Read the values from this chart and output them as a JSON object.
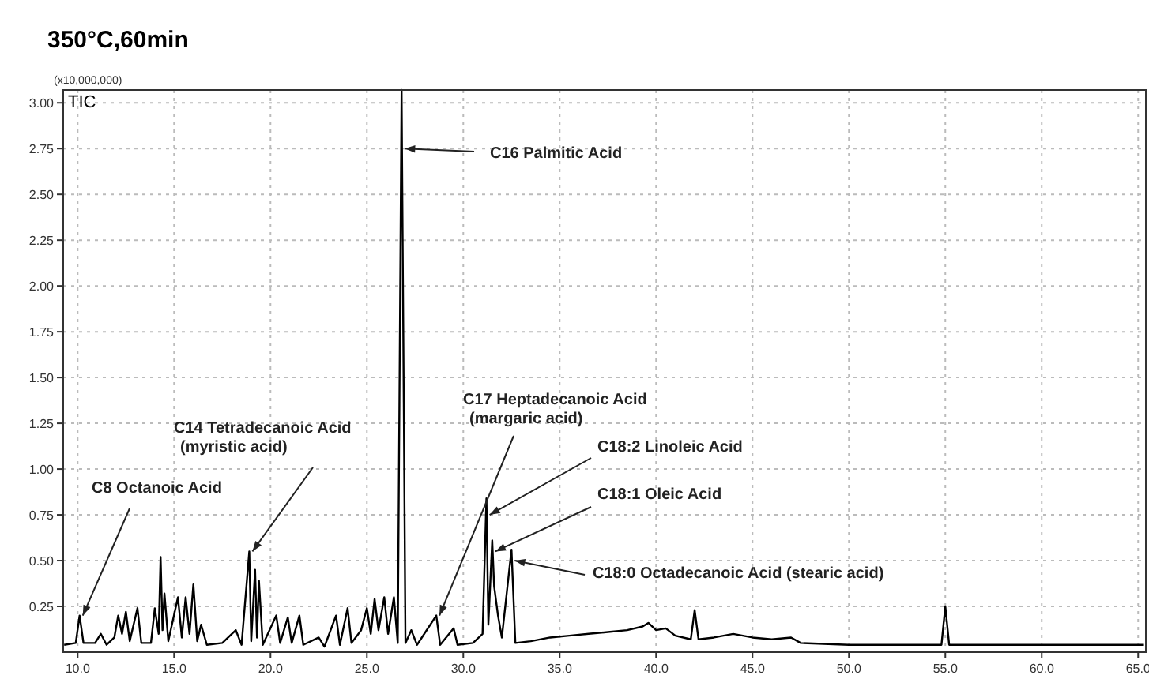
{
  "chart_data": {
    "type": "line",
    "title": "350°C,60min",
    "ylabel": "(x10,000,000)",
    "x": [
      9.3,
      9.9,
      10.1,
      10.3,
      10.9,
      11.2,
      11.5,
      11.9,
      12.1,
      12.3,
      12.5,
      12.7,
      13.1,
      13.3,
      13.8,
      14.0,
      14.2,
      14.3,
      14.4,
      14.5,
      14.7,
      15.2,
      15.4,
      15.6,
      15.8,
      16.0,
      16.2,
      16.4,
      16.7,
      17.5,
      18.2,
      18.5,
      18.9,
      19.0,
      19.2,
      19.3,
      19.4,
      19.6,
      20.3,
      20.5,
      20.9,
      21.1,
      21.5,
      21.7,
      22.5,
      22.8,
      23.4,
      23.6,
      24.0,
      24.2,
      24.7,
      25.0,
      25.2,
      25.4,
      25.6,
      25.9,
      26.1,
      26.4,
      26.6,
      26.8,
      27.0,
      27.3,
      27.6,
      28.6,
      28.8,
      29.5,
      29.7,
      30.5,
      31.0,
      31.2,
      31.3,
      31.5,
      31.6,
      31.8,
      32.0,
      32.5,
      32.7,
      33.5,
      34.5,
      35.5,
      36.5,
      37.5,
      38.5,
      39.3,
      39.6,
      40.0,
      40.5,
      41.0,
      41.8,
      42.0,
      42.2,
      43.0,
      44.0,
      45.0,
      46.0,
      47.0,
      47.5,
      50.0,
      54.8,
      55.0,
      55.2,
      60.0,
      65.3
    ],
    "series": [
      {
        "name": "TIC",
        "color": "#000000",
        "values": [
          0.04,
          0.05,
          0.2,
          0.05,
          0.05,
          0.1,
          0.04,
          0.08,
          0.2,
          0.1,
          0.22,
          0.06,
          0.24,
          0.05,
          0.05,
          0.24,
          0.1,
          0.52,
          0.12,
          0.32,
          0.06,
          0.3,
          0.08,
          0.3,
          0.1,
          0.37,
          0.06,
          0.15,
          0.04,
          0.05,
          0.12,
          0.04,
          0.55,
          0.06,
          0.45,
          0.08,
          0.39,
          0.04,
          0.2,
          0.05,
          0.19,
          0.05,
          0.2,
          0.04,
          0.08,
          0.03,
          0.2,
          0.04,
          0.24,
          0.05,
          0.12,
          0.24,
          0.1,
          0.29,
          0.12,
          0.3,
          0.1,
          0.3,
          0.05,
          3.07,
          0.05,
          0.12,
          0.04,
          0.2,
          0.04,
          0.13,
          0.04,
          0.05,
          0.1,
          0.84,
          0.15,
          0.61,
          0.36,
          0.2,
          0.08,
          0.56,
          0.05,
          0.06,
          0.08,
          0.09,
          0.1,
          0.11,
          0.12,
          0.14,
          0.16,
          0.12,
          0.13,
          0.09,
          0.07,
          0.23,
          0.07,
          0.08,
          0.1,
          0.08,
          0.07,
          0.08,
          0.05,
          0.04,
          0.04,
          0.25,
          0.04,
          0.04,
          0.04
        ]
      }
    ],
    "xlim": [
      9.25,
      65.4
    ],
    "ylim": [
      0,
      3.07
    ],
    "xticks": [
      {
        "value": 10,
        "label": "10.0"
      },
      {
        "value": 15,
        "label": "15.0"
      },
      {
        "value": 20,
        "label": "20.0"
      },
      {
        "value": 25,
        "label": "25.0"
      },
      {
        "value": 30,
        "label": "30.0"
      },
      {
        "value": 35,
        "label": "35.0"
      },
      {
        "value": 40,
        "label": "40.0"
      },
      {
        "value": 45,
        "label": "45.0"
      },
      {
        "value": 50,
        "label": "50.0"
      },
      {
        "value": 55,
        "label": "55.0"
      },
      {
        "value": 60,
        "label": "60.0"
      },
      {
        "value": 65,
        "label": "65.0"
      }
    ],
    "yticks": [
      {
        "value": 0.25,
        "label": "0.25"
      },
      {
        "value": 0.5,
        "label": "0.50"
      },
      {
        "value": 0.75,
        "label": "0.75"
      },
      {
        "value": 1,
        "label": "1.00"
      },
      {
        "value": 1.25,
        "label": "1.25"
      },
      {
        "value": 1.5,
        "label": "1.50"
      },
      {
        "value": 1.75,
        "label": "1.75"
      },
      {
        "value": 2,
        "label": "2.00"
      },
      {
        "value": 2.25,
        "label": "2.25"
      },
      {
        "value": 2.5,
        "label": "2.50"
      },
      {
        "value": 2.75,
        "label": "2.75"
      },
      {
        "value": 3,
        "label": "3.00"
      }
    ],
    "grid": true,
    "legend": false,
    "marker": "none",
    "line_style": "solid",
    "annotations": [
      {
        "text": "C8 Octanoic Acid",
        "x": 10.1,
        "y": 0.2
      },
      {
        "text": "C14 Tetradecanoic Acid\n(myristic acid)",
        "x": 18.9,
        "y": 0.55
      },
      {
        "text": "C16 Palmitic Acid",
        "x": 26.8,
        "y": 2.75
      },
      {
        "text": "C17 Heptadecanoic Acid\n(margaric acid)",
        "x": 28.6,
        "y": 0.2
      },
      {
        "text": "C18:2 Linoleic Acid",
        "x": 31.2,
        "y": 0.75
      },
      {
        "text": "C18:1 Oleic Acid",
        "x": 31.5,
        "y": 0.55
      },
      {
        "text": "C18:0 Octadecanoic Acid (stearic acid)",
        "x": 32.5,
        "y": 0.5
      }
    ]
  }
}
